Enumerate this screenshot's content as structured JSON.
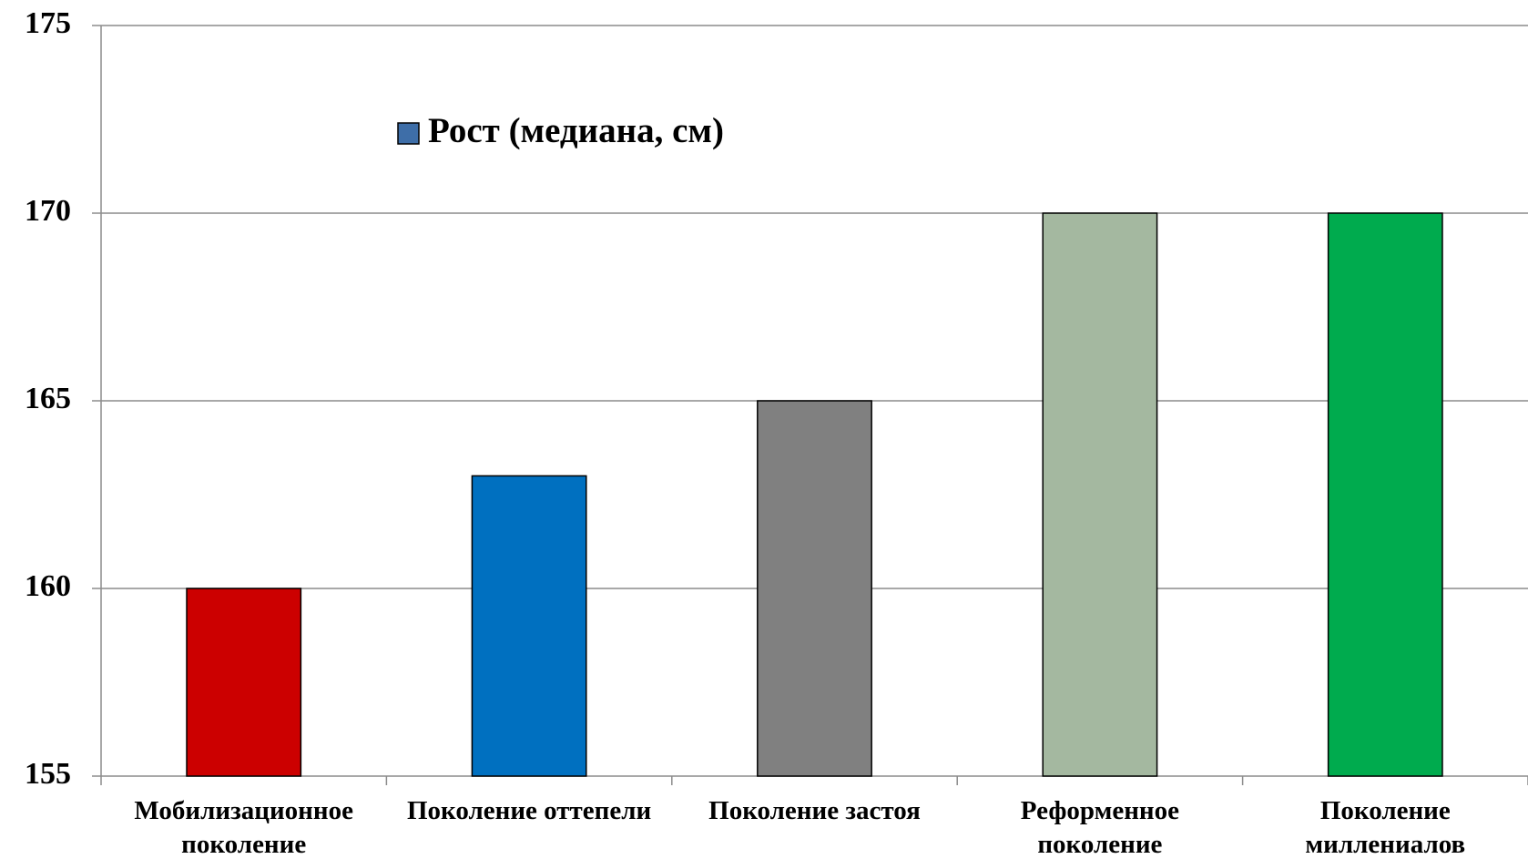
{
  "chart_data": {
    "type": "bar",
    "categories": [
      "Мобилизационное поколение",
      "Поколение оттепели",
      "Поколение застоя",
      "Реформенное поколение",
      "Поколение миллениалов"
    ],
    "series": [
      {
        "name": "Рост (медиана, см)",
        "color": "#3e6ea8",
        "values": [
          160,
          163,
          165,
          170,
          170
        ],
        "colors": [
          "#cc0000",
          "#0070c0",
          "#808080",
          "#a4b8a0",
          "#00ab4e"
        ]
      }
    ],
    "ylim": [
      155,
      175
    ],
    "yticks": [
      155,
      160,
      165,
      170,
      175
    ],
    "grid": true,
    "legend": "top"
  }
}
